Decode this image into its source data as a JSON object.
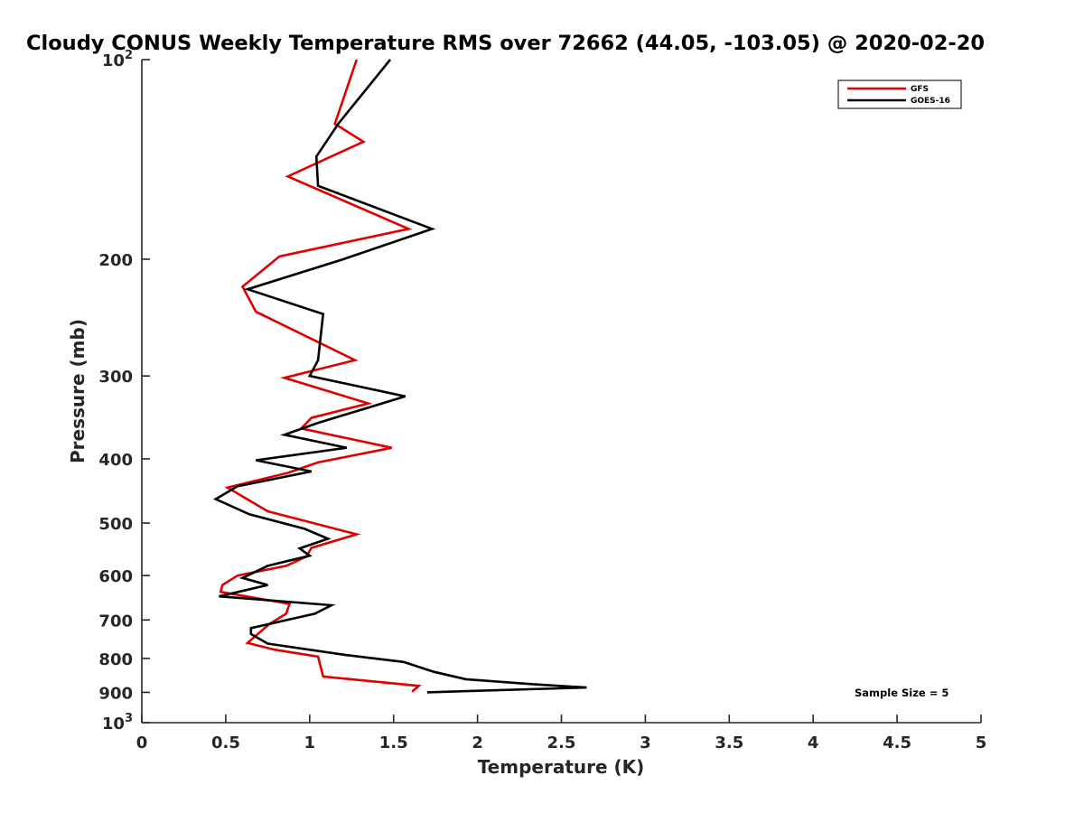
{
  "chart_data": {
    "type": "line",
    "title": "Cloudy CONUS Weekly Temperature RMS over 72662 (44.05, -103.05) @ 2020-02-20",
    "xlabel": "Temperature (K)",
    "ylabel": "Pressure (mb)",
    "xlim": [
      0,
      5
    ],
    "ylim": [
      100,
      1000
    ],
    "yscale": "log",
    "y_reversed": true,
    "grid": false,
    "legend_placement": "top-right",
    "x_ticks": [
      0,
      0.5,
      1,
      1.5,
      2,
      2.5,
      3,
      3.5,
      4,
      4.5,
      5
    ],
    "x_tick_labels": [
      "0",
      "0.5",
      "1",
      "1.5",
      "2",
      "2.5",
      "3",
      "3.5",
      "4",
      "4.5",
      "5"
    ],
    "y_ticks": [
      {
        "value": 100,
        "base": "10",
        "exp": "2"
      },
      {
        "value": 200,
        "label": "200"
      },
      {
        "value": 300,
        "label": "300"
      },
      {
        "value": 400,
        "label": "400"
      },
      {
        "value": 500,
        "label": "500"
      },
      {
        "value": 600,
        "label": "600"
      },
      {
        "value": 700,
        "label": "700"
      },
      {
        "value": 800,
        "label": "800"
      },
      {
        "value": 900,
        "label": "900"
      },
      {
        "value": 1000,
        "base": "10",
        "exp": "3"
      }
    ],
    "annotation": "Sample Size = 5",
    "series": [
      {
        "name": "GFS",
        "color": "#e00000",
        "points": [
          [
            1.28,
            100
          ],
          [
            1.15,
            125
          ],
          [
            1.32,
            133
          ],
          [
            0.87,
            150
          ],
          [
            1.59,
            180
          ],
          [
            0.82,
            198
          ],
          [
            0.6,
            220
          ],
          [
            0.68,
            240
          ],
          [
            1.27,
            284
          ],
          [
            0.85,
            302
          ],
          [
            1.35,
            330
          ],
          [
            1.01,
            347
          ],
          [
            0.95,
            360
          ],
          [
            1.49,
            385
          ],
          [
            1.05,
            405
          ],
          [
            0.87,
            420
          ],
          [
            0.51,
            442
          ],
          [
            0.75,
            480
          ],
          [
            1.28,
            520
          ],
          [
            1.01,
            545
          ],
          [
            0.98,
            562
          ],
          [
            0.86,
            580
          ],
          [
            0.57,
            600
          ],
          [
            0.48,
            620
          ],
          [
            0.47,
            635
          ],
          [
            0.88,
            662
          ],
          [
            0.86,
            685
          ],
          [
            0.76,
            710
          ],
          [
            0.63,
            758
          ],
          [
            0.79,
            776
          ],
          [
            1.05,
            795
          ],
          [
            1.08,
            852
          ],
          [
            1.65,
            880
          ],
          [
            1.61,
            898
          ]
        ]
      },
      {
        "name": "GOES-16",
        "color": "#000000",
        "points": [
          [
            1.48,
            100
          ],
          [
            1.17,
            125
          ],
          [
            1.04,
            140
          ],
          [
            1.05,
            155
          ],
          [
            1.73,
            180
          ],
          [
            1.2,
            200
          ],
          [
            0.63,
            222
          ],
          [
            1.08,
            242
          ],
          [
            1.05,
            284
          ],
          [
            1.0,
            300
          ],
          [
            1.57,
            322
          ],
          [
            1.05,
            353
          ],
          [
            0.85,
            368
          ],
          [
            1.22,
            385
          ],
          [
            0.68,
            402
          ],
          [
            1.01,
            418
          ],
          [
            0.57,
            440
          ],
          [
            0.44,
            460
          ],
          [
            0.64,
            485
          ],
          [
            0.97,
            510
          ],
          [
            1.11,
            528
          ],
          [
            0.94,
            546
          ],
          [
            1.0,
            560
          ],
          [
            0.75,
            580
          ],
          [
            0.6,
            605
          ],
          [
            0.75,
            620
          ],
          [
            0.46,
            645
          ],
          [
            1.13,
            665
          ],
          [
            1.03,
            685
          ],
          [
            0.65,
            720
          ],
          [
            0.65,
            735
          ],
          [
            0.75,
            760
          ],
          [
            1.21,
            790
          ],
          [
            1.56,
            810
          ],
          [
            1.74,
            838
          ],
          [
            1.93,
            860
          ],
          [
            2.33,
            875
          ],
          [
            2.65,
            885
          ],
          [
            1.7,
            900
          ]
        ]
      }
    ]
  }
}
